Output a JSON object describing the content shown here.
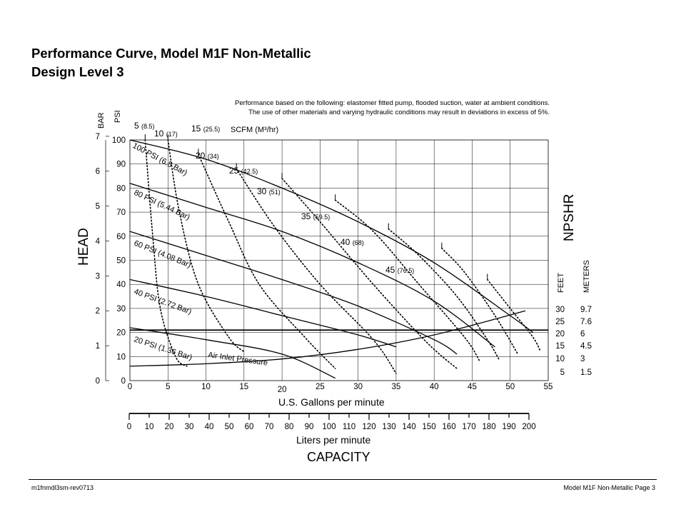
{
  "title": {
    "line1": "Performance Curve, Model M1F Non-Metallic",
    "line2": "Design Level 3"
  },
  "note": {
    "line1": "Performance based on the following: elastomer fitted pump, flooded suction, water at ambient conditions.",
    "line2": "The use of other materials and varying hydraulic conditions may result in deviations in excess of 5%."
  },
  "footer": {
    "left": "m1fnmdl3sm-rev0713",
    "right": "Model M1F Non-Metallic Page 3"
  },
  "chart_data": {
    "type": "line",
    "x_unit_label": "U.S. Gallons per minute",
    "x_unit_label_2": "Liters per minute",
    "capacity_label": "CAPACITY",
    "head_label": "HEAD",
    "npshr_label": "NPSHR",
    "bar_label": "BAR",
    "psi_label": "PSI",
    "feet_label": "FEET",
    "meters_label": "METERS",
    "scfm_label": "SCFM (M³/hr)",
    "xlim": [
      0,
      55
    ],
    "ylim": [
      0,
      100
    ],
    "x_ticks": [
      "0",
      "5",
      "10",
      "15",
      "20",
      "25",
      "30",
      "35",
      "40",
      "45",
      "50",
      "55"
    ],
    "psi_ticks": [
      "0",
      "10",
      "20",
      "30",
      "40",
      "50",
      "60",
      "70",
      "80",
      "90",
      "100"
    ],
    "bar_ticks": [
      "0",
      "1",
      "2",
      "3",
      "4",
      "5",
      "6",
      "7"
    ],
    "lpm_ticks": [
      "0",
      "10",
      "20",
      "30",
      "40",
      "50",
      "60",
      "70",
      "80",
      "90",
      "100",
      "110",
      "120",
      "130",
      "140",
      "150",
      "160",
      "170",
      "180",
      "190",
      "200"
    ],
    "npshr_feet_ticks": [
      "30",
      "25",
      "20",
      "15",
      "10",
      "5"
    ],
    "npshr_meter_ticks": [
      "9.7",
      "7.6",
      "6",
      "4.5",
      "3",
      "1.5"
    ],
    "pressure_curves": [
      {
        "label": "100 PSI (6.8 Bar)",
        "points": [
          [
            0,
            100
          ],
          [
            10,
            92
          ],
          [
            20,
            80
          ],
          [
            30,
            66
          ],
          [
            40,
            49
          ],
          [
            50,
            27
          ],
          [
            53,
            20
          ]
        ]
      },
      {
        "label": "80 PSI (5.44 Bar)",
        "points": [
          [
            0,
            82
          ],
          [
            10,
            72
          ],
          [
            20,
            62
          ],
          [
            30,
            49
          ],
          [
            40,
            33
          ],
          [
            48,
            14
          ]
        ]
      },
      {
        "label": "60 PSI (4.08 Bar)",
        "points": [
          [
            0,
            62
          ],
          [
            10,
            52
          ],
          [
            20,
            42
          ],
          [
            30,
            31
          ],
          [
            40,
            17
          ],
          [
            43,
            11
          ]
        ]
      },
      {
        "label": "40 PSI (2.72 Bar)",
        "points": [
          [
            0,
            42
          ],
          [
            10,
            35
          ],
          [
            20,
            27
          ],
          [
            30,
            19
          ],
          [
            35,
            14
          ]
        ]
      },
      {
        "label": "20 PSI (1.36 Bar)",
        "points": [
          [
            0,
            22
          ],
          [
            10,
            17
          ],
          [
            20,
            11
          ],
          [
            27,
            1
          ]
        ]
      }
    ],
    "npshr_curve": {
      "label": "Air Inlet Pressure",
      "points": [
        [
          0,
          6
        ],
        [
          10,
          7
        ],
        [
          20,
          9
        ],
        [
          30,
          13
        ],
        [
          40,
          19
        ],
        [
          52,
          29
        ]
      ]
    },
    "npshr_line_value": 21,
    "scfm_curves": [
      {
        "label": "5",
        "metric": "(8.5)",
        "points": [
          [
            2,
            100
          ],
          [
            3,
            60
          ],
          [
            4,
            30
          ],
          [
            6,
            10
          ],
          [
            7.5,
            6
          ]
        ]
      },
      {
        "label": "10",
        "metric": "(17)",
        "points": [
          [
            5,
            100
          ],
          [
            6.5,
            70
          ],
          [
            9,
            40
          ],
          [
            13,
            18
          ],
          [
            15,
            12
          ]
        ]
      },
      {
        "label": "15",
        "metric": "(25.5)",
        "points": [
          [
            9,
            94
          ],
          [
            13,
            66
          ],
          [
            17,
            40
          ],
          [
            23,
            18
          ],
          [
            27,
            5
          ]
        ]
      },
      {
        "label": "20",
        "metric": "(34)",
        "points": [
          [
            14,
            88
          ],
          [
            19,
            64
          ],
          [
            25,
            40
          ],
          [
            32,
            17
          ],
          [
            35,
            3
          ]
        ]
      },
      {
        "label": "25",
        "metric": "(42.5)",
        "points": [
          [
            20,
            84
          ],
          [
            25,
            66
          ],
          [
            32,
            40
          ],
          [
            39,
            16
          ],
          [
            43,
            5
          ]
        ]
      },
      {
        "label": "30",
        "metric": "(51)",
        "points": [
          [
            27,
            75
          ],
          [
            32,
            62
          ],
          [
            38,
            40
          ],
          [
            44,
            18
          ],
          [
            46,
            8
          ]
        ]
      },
      {
        "label": "35",
        "metric": "(59.5)",
        "points": [
          [
            34,
            63
          ],
          [
            38,
            52
          ],
          [
            43,
            35
          ],
          [
            47,
            17
          ],
          [
            48.5,
            9
          ]
        ]
      },
      {
        "label": "40",
        "metric": "(68)",
        "points": [
          [
            41,
            55
          ],
          [
            44,
            45
          ],
          [
            48,
            27
          ],
          [
            51,
            11
          ]
        ]
      },
      {
        "label": "45",
        "metric": "(76.5)",
        "points": [
          [
            47,
            42
          ],
          [
            50,
            30
          ],
          [
            53,
            18
          ],
          [
            54,
            12
          ]
        ]
      }
    ]
  }
}
